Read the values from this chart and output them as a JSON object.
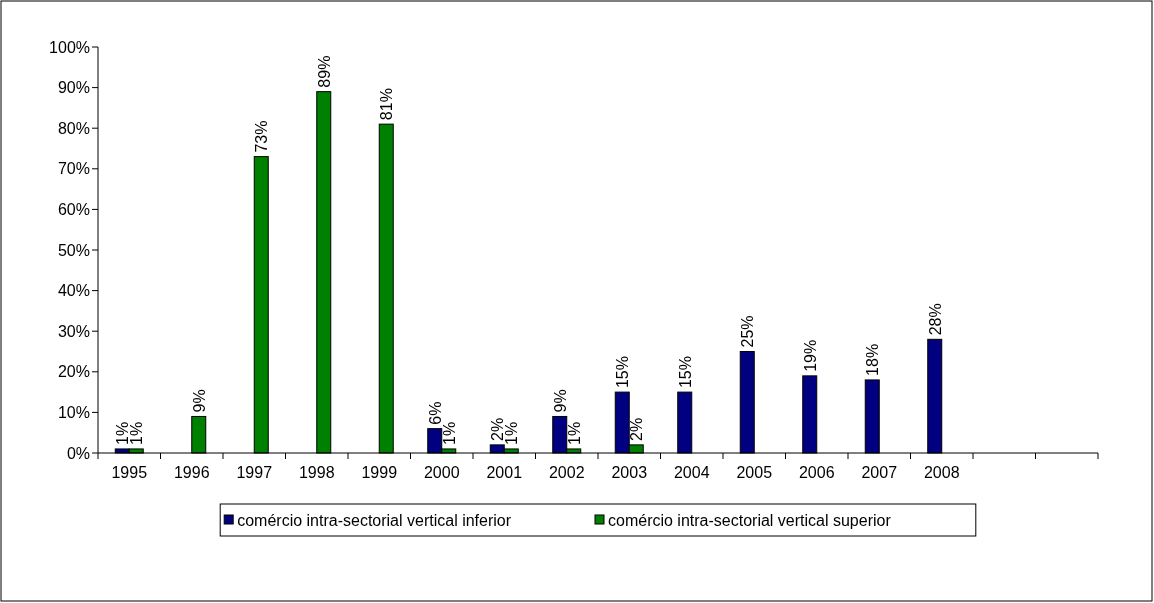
{
  "chart_data": {
    "type": "bar",
    "categories": [
      "1995",
      "1996",
      "1997",
      "1998",
      "1999",
      "2000",
      "2001",
      "2002",
      "2003",
      "2004",
      "2005",
      "2006",
      "2007",
      "2008",
      null,
      null
    ],
    "series": [
      {
        "name": "comércio intra-sectorial vertical inferior",
        "color": "#000080",
        "values": [
          1,
          null,
          null,
          null,
          null,
          6,
          2,
          9,
          15,
          15,
          25,
          19,
          18,
          28,
          null,
          null
        ],
        "value_labels": [
          "1%",
          null,
          null,
          null,
          null,
          "6%",
          "2%",
          "9%",
          "15%",
          "15%",
          "25%",
          "19%",
          "18%",
          "28%",
          null,
          null
        ]
      },
      {
        "name": "comércio intra-sectorial vertical superior",
        "color": "#008000",
        "values": [
          1,
          9,
          73,
          89,
          81,
          1,
          1,
          1,
          2,
          null,
          null,
          null,
          null,
          null,
          null,
          null
        ],
        "value_labels": [
          "1%",
          "9%",
          "73%",
          "89%",
          "81%",
          "1%",
          "1%",
          "1%",
          "2%",
          null,
          null,
          null,
          null,
          null,
          null,
          null
        ]
      }
    ],
    "ylim": [
      0,
      100
    ],
    "yticks": [
      {
        "value": 0,
        "label": "0%"
      },
      {
        "value": 10,
        "label": "10%"
      },
      {
        "value": 20,
        "label": "20%"
      },
      {
        "value": 30,
        "label": "30%"
      },
      {
        "value": 40,
        "label": "40%"
      },
      {
        "value": 50,
        "label": "50%"
      },
      {
        "value": 60,
        "label": "60%"
      },
      {
        "value": 70,
        "label": "70%"
      },
      {
        "value": 80,
        "label": "80%"
      },
      {
        "value": 90,
        "label": "90%"
      },
      {
        "value": 100,
        "label": "100%"
      }
    ],
    "legend": "bottom"
  }
}
